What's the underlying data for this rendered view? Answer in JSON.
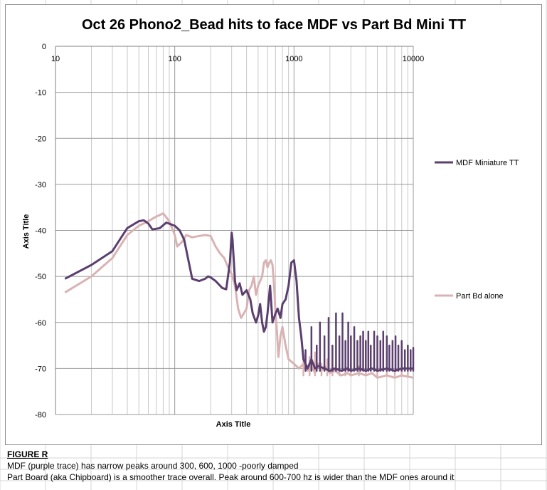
{
  "chart_data": {
    "type": "line",
    "title": "Oct 26 Phono2_Bead hits to face MDF vs Part Bd Mini TT",
    "xlabel": "Axis Title",
    "ylabel": "Axis Title",
    "xscale": "log",
    "xlim": [
      10,
      10000
    ],
    "ylim": [
      -80,
      0
    ],
    "x_ticks": [
      "10",
      "100",
      "1000",
      "10000"
    ],
    "y_ticks": [
      "0",
      "-10",
      "-20",
      "-30",
      "-40",
      "-50",
      "-60",
      "-70",
      "-80"
    ],
    "grid": true,
    "legend_position": "right",
    "series": [
      {
        "name": "MDF Miniature TT",
        "color": "#5b3f6e",
        "points": [
          [
            12,
            -50.5
          ],
          [
            20,
            -47.5
          ],
          [
            30,
            -44.5
          ],
          [
            40,
            -39.5
          ],
          [
            50,
            -38
          ],
          [
            55,
            -37.8
          ],
          [
            60,
            -38.5
          ],
          [
            65,
            -39.8
          ],
          [
            75,
            -39.5
          ],
          [
            85,
            -38.3
          ],
          [
            100,
            -39
          ],
          [
            110,
            -40
          ],
          [
            120,
            -42
          ],
          [
            140,
            -50.5
          ],
          [
            160,
            -51
          ],
          [
            180,
            -50.5
          ],
          [
            190,
            -50
          ],
          [
            200,
            -50.2
          ],
          [
            220,
            -51
          ],
          [
            250,
            -52.5
          ],
          [
            270,
            -52.8
          ],
          [
            290,
            -47
          ],
          [
            300,
            -40.5
          ],
          [
            305,
            -42
          ],
          [
            320,
            -51
          ],
          [
            330,
            -53
          ],
          [
            350,
            -51.5
          ],
          [
            370,
            -54
          ],
          [
            400,
            -53
          ],
          [
            430,
            -55
          ],
          [
            450,
            -58
          ],
          [
            480,
            -60
          ],
          [
            500,
            -58.5
          ],
          [
            520,
            -56
          ],
          [
            540,
            -60
          ],
          [
            560,
            -62
          ],
          [
            580,
            -61
          ],
          [
            600,
            -58
          ],
          [
            630,
            -52
          ],
          [
            660,
            -60
          ],
          [
            700,
            -58
          ],
          [
            730,
            -57
          ],
          [
            770,
            -59
          ],
          [
            800,
            -56
          ],
          [
            850,
            -55
          ],
          [
            900,
            -52
          ],
          [
            950,
            -47
          ],
          [
            1000,
            -46.5
          ],
          [
            1050,
            -51
          ],
          [
            1100,
            -59
          ],
          [
            1150,
            -63
          ],
          [
            1200,
            -68
          ],
          [
            1300,
            -70
          ],
          [
            1400,
            -68
          ],
          [
            1500,
            -70
          ],
          [
            1600,
            -69.5
          ],
          [
            1800,
            -70
          ],
          [
            2000,
            -70.5
          ],
          [
            2200,
            -70
          ],
          [
            2500,
            -70.5
          ],
          [
            2800,
            -70
          ],
          [
            3000,
            -70.5
          ],
          [
            3500,
            -70
          ],
          [
            4000,
            -70.5
          ],
          [
            4500,
            -70
          ],
          [
            5000,
            -70.5
          ],
          [
            6000,
            -70
          ],
          [
            7000,
            -70.5
          ],
          [
            8000,
            -70
          ],
          [
            10000,
            -70
          ]
        ],
        "spikes": [
          [
            1250,
            -66
          ],
          [
            1400,
            -61
          ],
          [
            1550,
            -65
          ],
          [
            1650,
            -60
          ],
          [
            1800,
            -63
          ],
          [
            1950,
            -59
          ],
          [
            2100,
            -65
          ],
          [
            2250,
            -58
          ],
          [
            2400,
            -63
          ],
          [
            2550,
            -58
          ],
          [
            2700,
            -64
          ],
          [
            2850,
            -60
          ],
          [
            3000,
            -63
          ],
          [
            3200,
            -61
          ],
          [
            3400,
            -64
          ],
          [
            3600,
            -63
          ],
          [
            3800,
            -62
          ],
          [
            4000,
            -64
          ],
          [
            4200,
            -62
          ],
          [
            4400,
            -65
          ],
          [
            4700,
            -62
          ],
          [
            5000,
            -63
          ],
          [
            5300,
            -64
          ],
          [
            5600,
            -62
          ],
          [
            6000,
            -63
          ],
          [
            6300,
            -65
          ],
          [
            6700,
            -64
          ],
          [
            7100,
            -63
          ],
          [
            7500,
            -65
          ],
          [
            8000,
            -64
          ],
          [
            8500,
            -66
          ],
          [
            9000,
            -65
          ],
          [
            9500,
            -66
          ],
          [
            10000,
            -65.5
          ]
        ]
      },
      {
        "name": "Part Bd alone",
        "color": "#d9b3b3",
        "points": [
          [
            12,
            -53.5
          ],
          [
            20,
            -50
          ],
          [
            30,
            -46
          ],
          [
            40,
            -41
          ],
          [
            50,
            -39
          ],
          [
            60,
            -38
          ],
          [
            70,
            -37
          ],
          [
            80,
            -36.3
          ],
          [
            90,
            -38
          ],
          [
            95,
            -39.5
          ],
          [
            100,
            -41
          ],
          [
            105,
            -43.5
          ],
          [
            115,
            -42.5
          ],
          [
            125,
            -41
          ],
          [
            140,
            -41.5
          ],
          [
            160,
            -41.2
          ],
          [
            180,
            -41
          ],
          [
            200,
            -41.2
          ],
          [
            220,
            -43.5
          ],
          [
            240,
            -45
          ],
          [
            260,
            -46
          ],
          [
            280,
            -48
          ],
          [
            300,
            -49.5
          ],
          [
            320,
            -52
          ],
          [
            340,
            -57
          ],
          [
            360,
            -59
          ],
          [
            380,
            -58
          ],
          [
            400,
            -57
          ],
          [
            420,
            -53
          ],
          [
            440,
            -52
          ],
          [
            460,
            -50
          ],
          [
            480,
            -54
          ],
          [
            500,
            -52
          ],
          [
            520,
            -51
          ],
          [
            540,
            -50
          ],
          [
            560,
            -47
          ],
          [
            580,
            -46.5
          ],
          [
            600,
            -48
          ],
          [
            620,
            -47
          ],
          [
            640,
            -46.5
          ],
          [
            660,
            -47.5
          ],
          [
            680,
            -52
          ],
          [
            700,
            -58
          ],
          [
            720,
            -62
          ],
          [
            740,
            -67.5
          ],
          [
            770,
            -63
          ],
          [
            800,
            -61
          ],
          [
            850,
            -65
          ],
          [
            900,
            -68
          ],
          [
            950,
            -68.5
          ],
          [
            1000,
            -69
          ],
          [
            1100,
            -70
          ],
          [
            1200,
            -69
          ],
          [
            1300,
            -70.5
          ],
          [
            1400,
            -69.5
          ],
          [
            1500,
            -71
          ],
          [
            1600,
            -69
          ],
          [
            1700,
            -70.5
          ],
          [
            1800,
            -69.5
          ],
          [
            2000,
            -71
          ],
          [
            2200,
            -70.5
          ],
          [
            2500,
            -71.5
          ],
          [
            2800,
            -71
          ],
          [
            3000,
            -71.5
          ],
          [
            3500,
            -71
          ],
          [
            4000,
            -71.5
          ],
          [
            4500,
            -71
          ],
          [
            5000,
            -72
          ],
          [
            6000,
            -71.5
          ],
          [
            7000,
            -72
          ],
          [
            8000,
            -71.5
          ],
          [
            10000,
            -72
          ]
        ],
        "spikes": [
          [
            1200,
            -67
          ],
          [
            1350,
            -67.5
          ],
          [
            1500,
            -66.5
          ],
          [
            1700,
            -69
          ],
          [
            1900,
            -68
          ],
          [
            2100,
            -69
          ],
          [
            2400,
            -69
          ],
          [
            2700,
            -69.5
          ],
          [
            3000,
            -69
          ],
          [
            3500,
            -69.5
          ],
          [
            4000,
            -70
          ],
          [
            5000,
            -69.5
          ],
          [
            6000,
            -70
          ],
          [
            7000,
            -70.5
          ],
          [
            8000,
            -69.5
          ],
          [
            9000,
            -70
          ]
        ]
      }
    ]
  },
  "caption": {
    "heading": "FIGURE R",
    "line1": "MDF (purple trace) has narrow peaks around 300, 600, 1000 -poorly damped",
    "line2": "Part Board (aka Chipboard) is a smoother trace overall. Peak around 600-700 hz is wider than the MDF ones around it"
  }
}
